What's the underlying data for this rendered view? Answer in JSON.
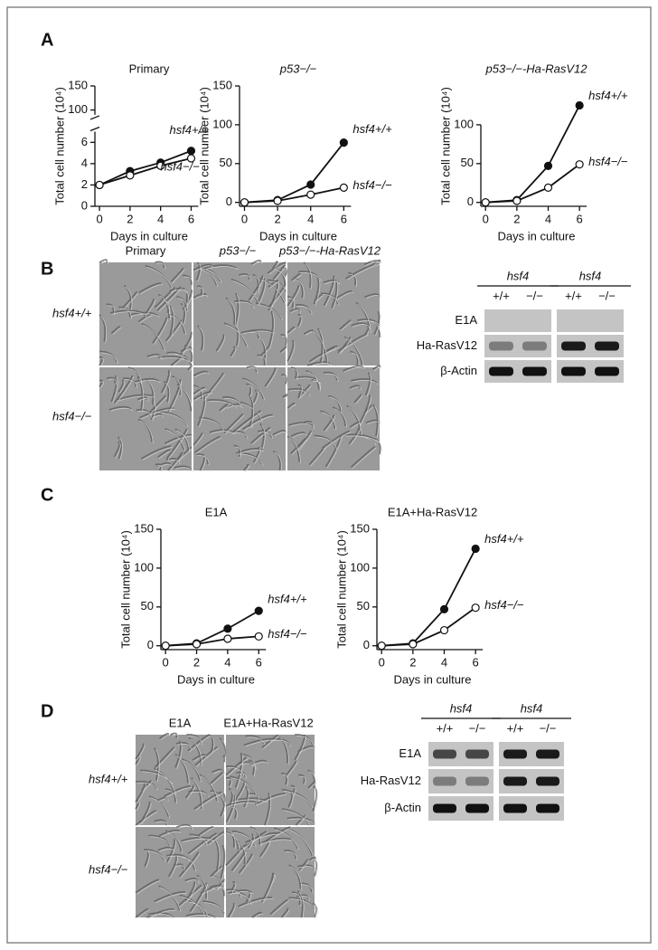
{
  "figure": {
    "panel_labels": [
      "A",
      "B",
      "C",
      "D"
    ],
    "B": {
      "columns": [
        "Primary",
        "p53−/−",
        "p53−/−-Ha-RasV12"
      ],
      "rows": [
        "hsf4+/+",
        "hsf4−/−"
      ],
      "blot": {
        "groups": [
          "hsf4",
          "hsf4"
        ],
        "genotypes": [
          "+/+",
          "−/−",
          "+/+",
          "−/−"
        ],
        "rows": [
          "E1A",
          "Ha-RasV12",
          "β-Actin"
        ]
      }
    },
    "D": {
      "columns": [
        "E1A",
        "E1A+Ha-RasV12"
      ],
      "rows": [
        "hsf4+/+",
        "hsf4−/−"
      ],
      "blot": {
        "groups": [
          "hsf4",
          "hsf4"
        ],
        "genotypes": [
          "+/+",
          "−/−",
          "+/+",
          "−/−"
        ],
        "rows": [
          "E1A",
          "Ha-RasV12",
          "β-Actin"
        ]
      }
    }
  },
  "chart_data": [
    {
      "type": "line",
      "title": "Primary",
      "x_label": "Days in culture",
      "y_label": "Total cell number (10⁴)",
      "x": [
        0,
        2,
        4,
        6
      ],
      "xlim": [
        -0.3,
        6.8
      ],
      "xticks": [
        0,
        2,
        4,
        6
      ],
      "ylim": [
        0,
        150
      ],
      "ybreak": [
        7,
        90
      ],
      "yticks": [
        0,
        2,
        4,
        6,
        100,
        150
      ],
      "series": [
        {
          "name": "hsf4+/+",
          "color": "#111111",
          "marker_fill": "#111111",
          "values": [
            2,
            3.3,
            4.1,
            5.2
          ]
        },
        {
          "name": "hsf4−/−",
          "color": "#111111",
          "marker_fill": "#ffffff",
          "values": [
            2,
            2.9,
            3.8,
            4.5
          ]
        }
      ]
    },
    {
      "type": "line",
      "title": "p53−/−",
      "x_label": "Days in culture",
      "y_label": "Total cell number (10⁴)",
      "x": [
        0,
        2,
        4,
        6
      ],
      "xlim": [
        -0.3,
        6.8
      ],
      "xticks": [
        0,
        2,
        4,
        6
      ],
      "ylim": [
        -5,
        150
      ],
      "yticks": [
        0,
        50,
        100,
        150
      ],
      "series": [
        {
          "name": "hsf4+/+",
          "color": "#111111",
          "marker_fill": "#111111",
          "values": [
            0,
            3,
            23,
            77
          ]
        },
        {
          "name": "hsf4−/−",
          "color": "#111111",
          "marker_fill": "#ffffff",
          "values": [
            0,
            2,
            10,
            19
          ]
        }
      ]
    },
    {
      "type": "line",
      "title": "p53−/−-Ha-RasV12",
      "x_label": "Days in culture",
      "y_label": "Total cell number (10⁴)",
      "x": [
        0,
        2,
        4,
        6
      ],
      "xlim": [
        -0.3,
        6.8
      ],
      "xticks": [
        0,
        2,
        4,
        6
      ],
      "ylim": [
        -5,
        150
      ],
      "yticks": [
        0,
        50,
        100
      ],
      "series": [
        {
          "name": "hsf4+/+",
          "color": "#111111",
          "marker_fill": "#111111",
          "values": [
            0,
            3,
            47,
            125
          ]
        },
        {
          "name": "hsf4−/−",
          "color": "#111111",
          "marker_fill": "#ffffff",
          "values": [
            0,
            2,
            19,
            49
          ]
        }
      ]
    },
    {
      "type": "line",
      "title": "E1A",
      "x_label": "Days in culture",
      "y_label": "Total cell number (10⁴)",
      "x": [
        0,
        2,
        4,
        6
      ],
      "xlim": [
        -0.3,
        6.8
      ],
      "xticks": [
        0,
        2,
        4,
        6
      ],
      "ylim": [
        -5,
        150
      ],
      "yticks": [
        0,
        50,
        100,
        150
      ],
      "series": [
        {
          "name": "hsf4+/+",
          "color": "#111111",
          "marker_fill": "#111111",
          "values": [
            0,
            3,
            22,
            45
          ]
        },
        {
          "name": "hsf4−/−",
          "color": "#111111",
          "marker_fill": "#ffffff",
          "values": [
            0,
            2,
            9,
            12
          ]
        }
      ]
    },
    {
      "type": "line",
      "title": "E1A+Ha-RasV12",
      "x_label": "Days in culture",
      "y_label": "Total cell number (10⁴)",
      "x": [
        0,
        2,
        4,
        6
      ],
      "xlim": [
        -0.3,
        6.8
      ],
      "xticks": [
        0,
        2,
        4,
        6
      ],
      "ylim": [
        -5,
        150
      ],
      "yticks": [
        0,
        50,
        100,
        150
      ],
      "series": [
        {
          "name": "hsf4+/+",
          "color": "#111111",
          "marker_fill": "#111111",
          "values": [
            0,
            3,
            47,
            125
          ]
        },
        {
          "name": "hsf4−/−",
          "color": "#111111",
          "marker_fill": "#ffffff",
          "values": [
            0,
            2,
            20,
            49
          ]
        }
      ]
    }
  ]
}
